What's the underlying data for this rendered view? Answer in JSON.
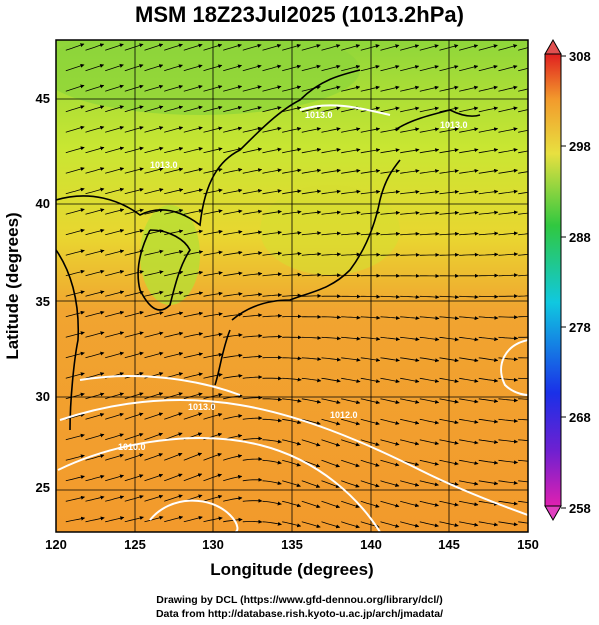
{
  "title": "MSM 18Z23Jul2025 (1013.2hPa)",
  "chart_data": {
    "type": "heatmap",
    "variable_colorbar": {
      "range": [
        258,
        308
      ],
      "tick_labels": [
        "308",
        "298",
        "288",
        "278",
        "268",
        "258"
      ]
    },
    "xaxis": {
      "label": "Longitude (degrees)",
      "range": [
        120,
        150
      ],
      "tick_labels": [
        "120",
        "125",
        "130",
        "135",
        "140",
        "145",
        "150"
      ]
    },
    "yaxis": {
      "label": "Latitude  (degrees)",
      "range": [
        22.6,
        48
      ],
      "tick_labels": [
        "25",
        "30",
        "35",
        "40",
        "45"
      ]
    },
    "contour_labels": [
      "1013.0",
      "1010.0",
      "1013.0",
      "1012.0",
      "1013.0",
      "1013.0"
    ],
    "grid": true
  },
  "credits": {
    "line1": "Drawing by DCL (https://www.gfd-dennou.org/library/dcl/)",
    "line2": "Data from http://database.rish.kyoto-u.ac.jp/arch/jmadata/"
  }
}
